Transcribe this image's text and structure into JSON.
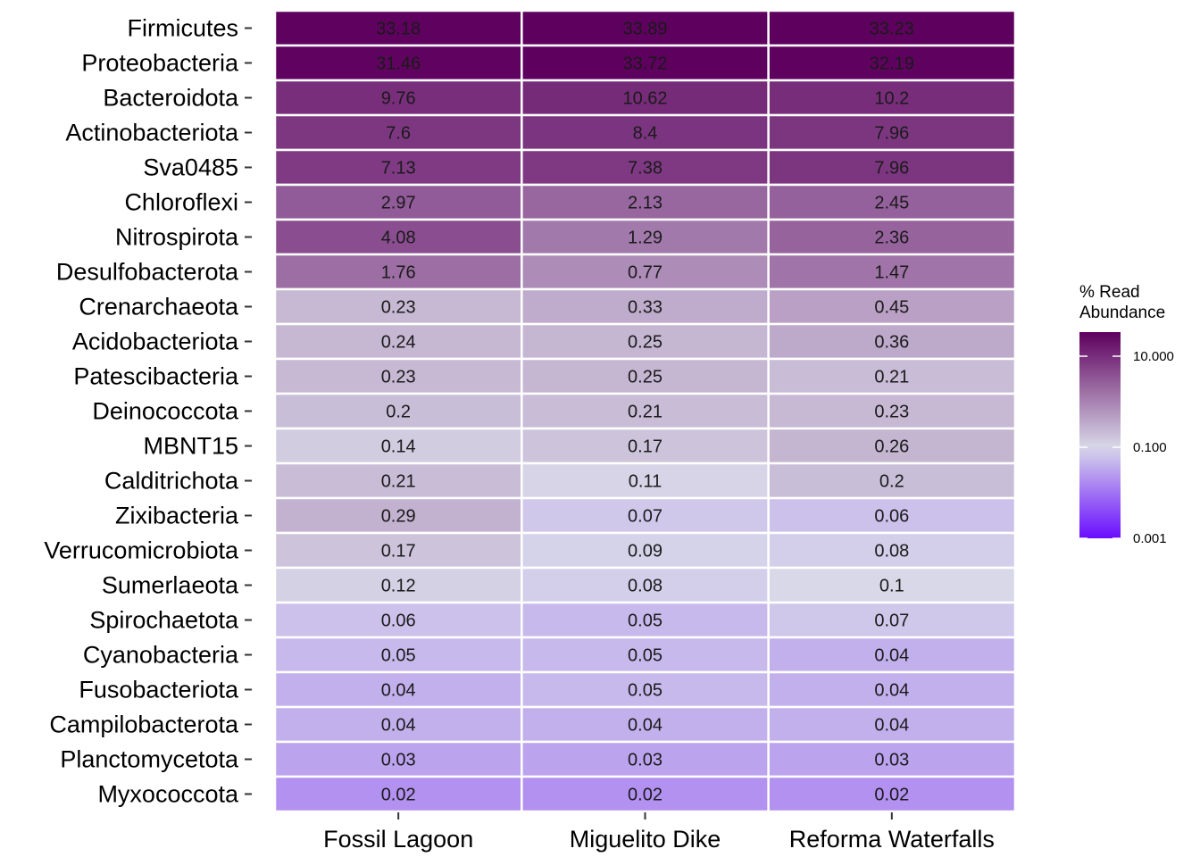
{
  "chart_data": {
    "type": "heatmap",
    "x_categories": [
      "Fossil Lagoon",
      "Miguelito Dike",
      "Reforma Waterfalls"
    ],
    "y_categories": [
      "Firmicutes",
      "Proteobacteria",
      "Bacteroidota",
      "Actinobacteriota",
      "Sva0485",
      "Chloroflexi",
      "Nitrospirota",
      "Desulfobacterota",
      "Crenarchaeota",
      "Acidobacteriota",
      "Patescibacteria",
      "Deinococcota",
      "MBNT15",
      "Calditrichota",
      "Zixibacteria",
      "Verrucomicrobiota",
      "Sumerlaeota",
      "Spirochaetota",
      "Cyanobacteria",
      "Fusobacteriota",
      "Campilobacterota",
      "Planctomycetota",
      "Myxococcota"
    ],
    "values": [
      [
        33.18,
        33.89,
        33.23
      ],
      [
        31.46,
        33.72,
        32.19
      ],
      [
        9.76,
        10.62,
        10.2
      ],
      [
        7.6,
        8.4,
        7.96
      ],
      [
        7.13,
        7.38,
        7.96
      ],
      [
        2.97,
        2.13,
        2.45
      ],
      [
        4.08,
        1.29,
        2.36
      ],
      [
        1.76,
        0.77,
        1.47
      ],
      [
        0.23,
        0.33,
        0.45
      ],
      [
        0.24,
        0.25,
        0.36
      ],
      [
        0.23,
        0.25,
        0.21
      ],
      [
        0.2,
        0.21,
        0.23
      ],
      [
        0.14,
        0.17,
        0.26
      ],
      [
        0.21,
        0.11,
        0.2
      ],
      [
        0.29,
        0.07,
        0.06
      ],
      [
        0.17,
        0.09,
        0.08
      ],
      [
        0.12,
        0.08,
        0.1
      ],
      [
        0.06,
        0.05,
        0.07
      ],
      [
        0.05,
        0.05,
        0.04
      ],
      [
        0.04,
        0.05,
        0.04
      ],
      [
        0.04,
        0.04,
        0.04
      ],
      [
        0.03,
        0.03,
        0.03
      ],
      [
        0.02,
        0.02,
        0.02
      ]
    ],
    "color_scale": {
      "type": "log10",
      "low_color": "#6a0dff",
      "mid_color": "#d8d8e8",
      "high_color": "#5e005e",
      "midpoint": 0.1,
      "range": [
        0.001,
        33.89
      ]
    },
    "legend": {
      "title": "% Read\nAbundance",
      "title_lines": [
        "% Read",
        "Abundance"
      ],
      "ticks": [
        {
          "value": 10,
          "label": "10.000"
        },
        {
          "value": 0.1,
          "label": "0.100"
        },
        {
          "value": 0.001,
          "label": "0.001"
        }
      ],
      "position": "right"
    },
    "cell_border_color": "#ffffff",
    "label_color": "#1a1a1a"
  }
}
